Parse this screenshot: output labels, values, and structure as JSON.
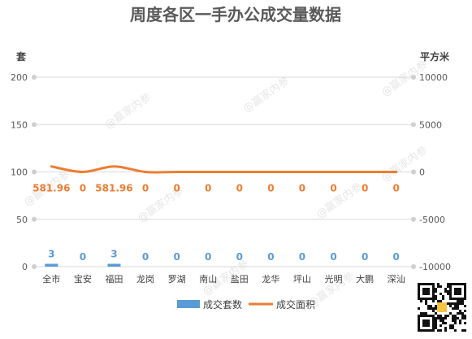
{
  "chart_data": {
    "type": "bar",
    "title": "周度各区一手办公成交量数据",
    "categories": [
      "全市",
      "宝安",
      "福田",
      "龙岗",
      "罗湖",
      "南山",
      "盐田",
      "龙华",
      "坪山",
      "光明",
      "大鹏",
      "深汕"
    ],
    "series": [
      {
        "name": "成交套数",
        "type": "bar",
        "axis": "left",
        "color": "#5b9bd5",
        "values": [
          3,
          0,
          3,
          0,
          0,
          0,
          0,
          0,
          0,
          0,
          0,
          0
        ],
        "labels": [
          "3",
          "0",
          "3",
          "0",
          "0",
          "0",
          "0",
          "0",
          "0",
          "0",
          "0",
          "0"
        ]
      },
      {
        "name": "成交面积",
        "type": "line",
        "axis": "right",
        "color": "#ed7d31",
        "values": [
          581.96,
          0,
          581.96,
          0,
          0,
          0,
          0,
          0,
          0,
          0,
          0,
          0
        ],
        "labels": [
          "581.96",
          "0",
          "581.96",
          "0",
          "0",
          "0",
          "0",
          "0",
          "0",
          "0",
          "0",
          "0"
        ]
      }
    ],
    "left_axis": {
      "label": "套",
      "ylim": [
        0,
        200
      ],
      "ticks": [
        "0",
        "50",
        "100",
        "150",
        "200"
      ]
    },
    "right_axis": {
      "label": "平方米",
      "ylim": [
        -10000,
        10000
      ],
      "ticks": [
        "-10000",
        "-5000",
        "0",
        "5000",
        "10000"
      ]
    },
    "grid": true,
    "legend": "bottom"
  },
  "watermark": "@赢家内参"
}
